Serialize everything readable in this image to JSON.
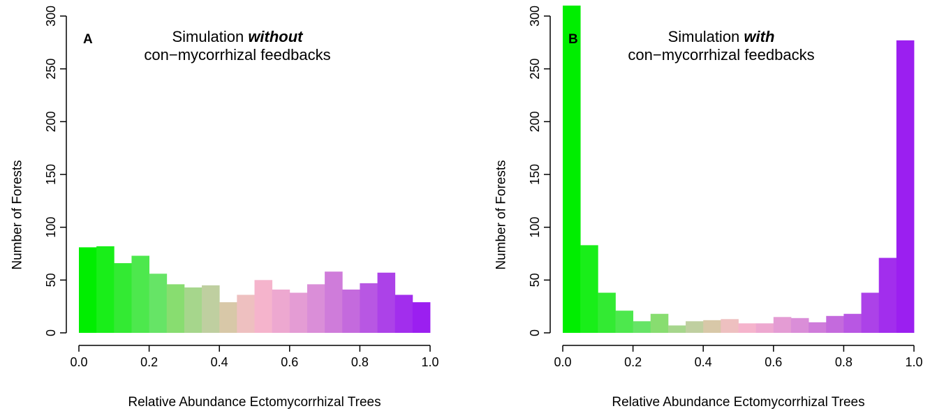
{
  "chart_data": [
    {
      "type": "bar",
      "panel_label": "A",
      "title": "Simulation without con−mycorrhizal feedbacks",
      "title_line1_plain": "Simulation ",
      "title_line1_emph": "without",
      "title_line2": "con−mycorrhizal feedbacks",
      "xlabel": "Relative Abundance Ectomycorrhizal Trees",
      "ylabel": "Number of Forests",
      "xlim": [
        0,
        1
      ],
      "ylim": [
        0,
        300
      ],
      "xticks": [
        "0.0",
        "0.2",
        "0.4",
        "0.6",
        "0.8",
        "1.0"
      ],
      "yticks": [
        "0",
        "50",
        "100",
        "150",
        "200",
        "250",
        "300"
      ],
      "bin_width": 0.05,
      "bins": [
        0.0,
        0.05,
        0.1,
        0.15,
        0.2,
        0.25,
        0.3,
        0.35,
        0.4,
        0.45,
        0.5,
        0.55,
        0.6,
        0.65,
        0.7,
        0.75,
        0.8,
        0.85,
        0.9,
        0.95
      ],
      "values": [
        81,
        82,
        66,
        73,
        56,
        46,
        43,
        45,
        29,
        36,
        50,
        41,
        38,
        46,
        58,
        41,
        47,
        57,
        36,
        29
      ],
      "colors": [
        "#00EE00",
        "#19EE19",
        "#33EA33",
        "#4DE84D",
        "#66E466",
        "#88DD70",
        "#A6D68C",
        "#BFCFA0",
        "#D8C8A8",
        "#EEC0C0",
        "#F5B4CC",
        "#EDA8D0",
        "#E49CD4",
        "#DA8ED8",
        "#CF7CDA",
        "#C46ADD",
        "#B857E3",
        "#AC42E8",
        "#A22EED",
        "#9B1FF0"
      ]
    },
    {
      "type": "bar",
      "panel_label": "B",
      "title": "Simulation with con−mycorrhizal feedbacks",
      "title_line1_plain": "Simulation ",
      "title_line1_emph": "with",
      "title_line2": "con−mycorrhizal feedbacks",
      "xlabel": "Relative Abundance Ectomycorrhizal Trees",
      "ylabel": "Number of Forests",
      "xlim": [
        0,
        1
      ],
      "ylim": [
        0,
        300
      ],
      "xticks": [
        "0.0",
        "0.2",
        "0.4",
        "0.6",
        "0.8",
        "1.0"
      ],
      "yticks": [
        "0",
        "50",
        "100",
        "150",
        "200",
        "250",
        "300"
      ],
      "bin_width": 0.05,
      "bins": [
        0.0,
        0.05,
        0.1,
        0.15,
        0.2,
        0.25,
        0.3,
        0.35,
        0.4,
        0.45,
        0.5,
        0.55,
        0.6,
        0.65,
        0.7,
        0.75,
        0.8,
        0.85,
        0.9,
        0.95
      ],
      "values": [
        310,
        83,
        38,
        21,
        11,
        18,
        7,
        11,
        12,
        13,
        9,
        9,
        15,
        14,
        10,
        16,
        18,
        38,
        71,
        277
      ],
      "colors": [
        "#00EE00",
        "#19EE19",
        "#33EA33",
        "#4DE84D",
        "#66E466",
        "#88DD70",
        "#A6D68C",
        "#BFCFA0",
        "#D8C8A8",
        "#EEC0C0",
        "#F5B4CC",
        "#EDA8D0",
        "#E49CD4",
        "#DA8ED8",
        "#CF7CDA",
        "#C46ADD",
        "#B857E3",
        "#AC42E8",
        "#A22EED",
        "#9B1FF0"
      ]
    }
  ]
}
